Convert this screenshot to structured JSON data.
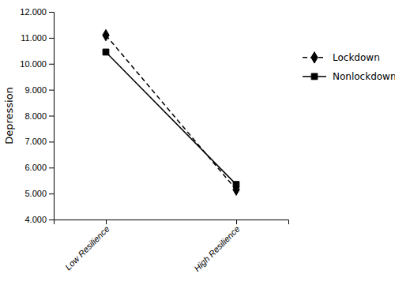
{
  "chart_data": {
    "type": "line",
    "categories": [
      "Low Resilience",
      "High Resilience"
    ],
    "series": [
      {
        "name": "Lockdown",
        "color": "#000000",
        "values": [
          11.1,
          5.15
        ],
        "marker": "diamond",
        "line_style": "dashed"
      },
      {
        "name": "Nonlockdown",
        "color": "#000000",
        "values": [
          10.45,
          5.35
        ],
        "marker": "square",
        "line_style": "solid"
      }
    ],
    "y_label": "Depression",
    "ylim": [
      4.0,
      12.0
    ],
    "yticks": [
      {
        "value": 4.0,
        "label": "4.000"
      },
      {
        "value": 5.0,
        "label": "5.000"
      },
      {
        "value": 6.0,
        "label": "6.000"
      },
      {
        "value": 7.0,
        "label": "7.000"
      },
      {
        "value": 8.0,
        "label": "8.000"
      },
      {
        "value": 9.0,
        "label": "9.000"
      },
      {
        "value": 10.0,
        "label": "10.000"
      },
      {
        "value": 11.0,
        "label": "11.000"
      },
      {
        "value": 12.0,
        "label": "12.000"
      }
    ],
    "grid": false,
    "legend": "right"
  }
}
